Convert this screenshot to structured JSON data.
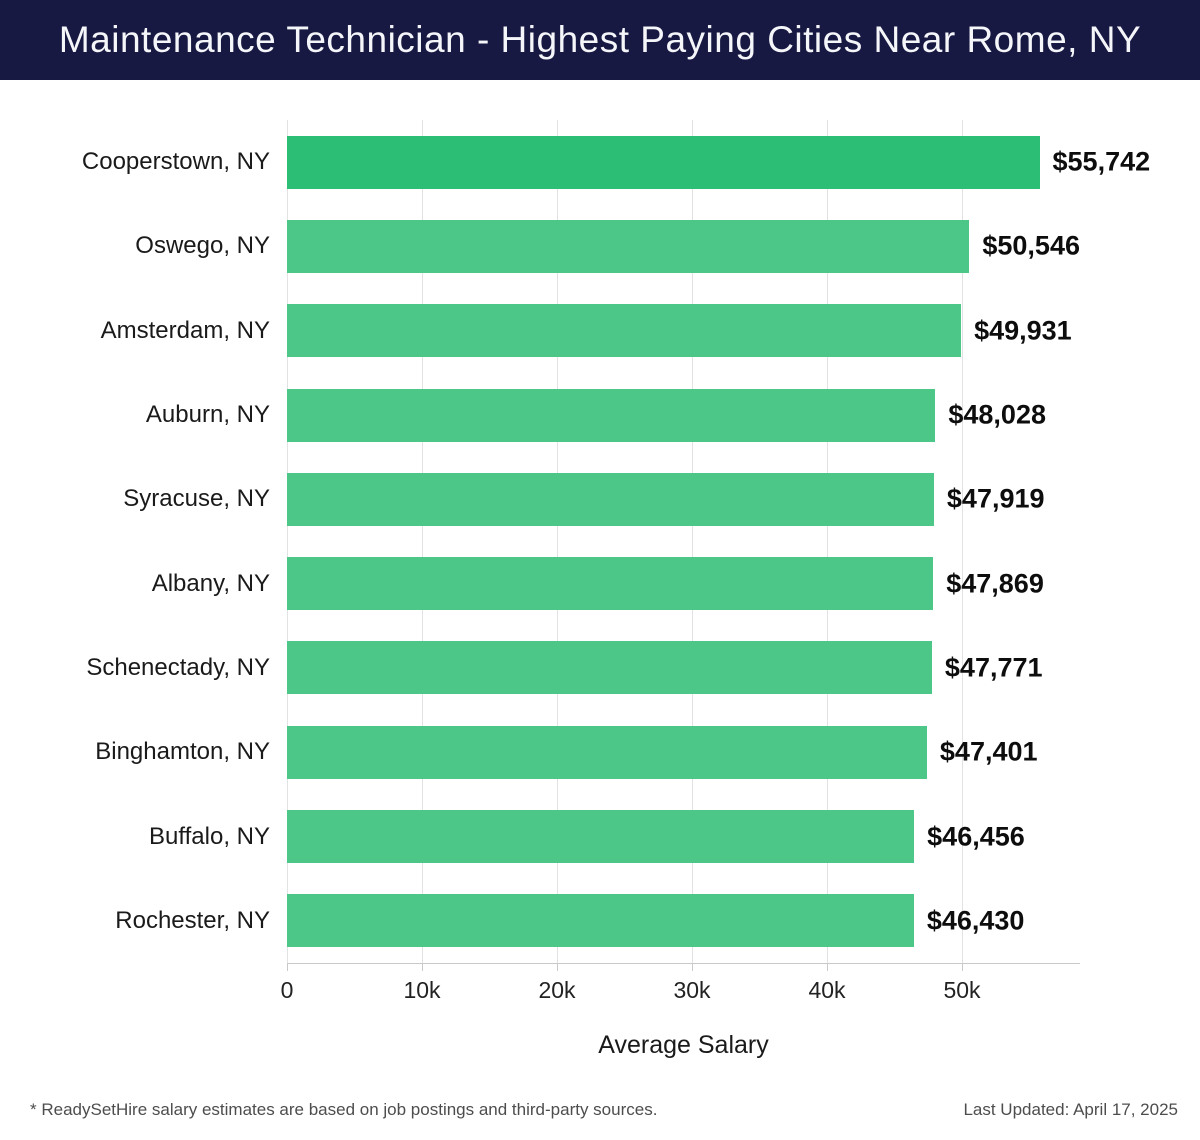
{
  "header": {
    "title": "Maintenance Technician - Highest Paying Cities Near Rome, NY"
  },
  "chart_data": {
    "type": "bar",
    "orientation": "horizontal",
    "title": "Maintenance Technician - Highest Paying Cities Near Rome, NY",
    "categories": [
      "Cooperstown, NY",
      "Oswego, NY",
      "Amsterdam, NY",
      "Auburn, NY",
      "Syracuse, NY",
      "Albany, NY",
      "Schenectady, NY",
      "Binghamton, NY",
      "Buffalo, NY",
      "Rochester, NY"
    ],
    "values": [
      55742,
      50546,
      49931,
      48028,
      47919,
      47869,
      47771,
      47401,
      46456,
      46430
    ],
    "value_labels": [
      "$55,742",
      "$50,546",
      "$49,931",
      "$48,028",
      "$47,919",
      "$47,869",
      "$47,771",
      "$47,401",
      "$46,456",
      "$46,430"
    ],
    "xlabel": "Average Salary",
    "ylabel": "",
    "axis_max": 58740,
    "x_ticks": [
      {
        "value": 0,
        "label": "0"
      },
      {
        "value": 10000,
        "label": "10k"
      },
      {
        "value": 20000,
        "label": "20k"
      },
      {
        "value": 30000,
        "label": "30k"
      },
      {
        "value": 40000,
        "label": "40k"
      },
      {
        "value": 50000,
        "label": "50k"
      }
    ],
    "grid": true,
    "legend": "none",
    "highlight_index": 0,
    "highlight_color": "#2dbe76",
    "bar_color": "#4cc787",
    "header_bg_color": "#181942",
    "gridline_color": "#e2e2e2",
    "axis_color": "#c9c9c9"
  },
  "footer": {
    "disclaimer": "* ReadySetHire salary estimates are based on job postings and third-party sources.",
    "last_updated": "Last Updated: April 17, 2025"
  }
}
